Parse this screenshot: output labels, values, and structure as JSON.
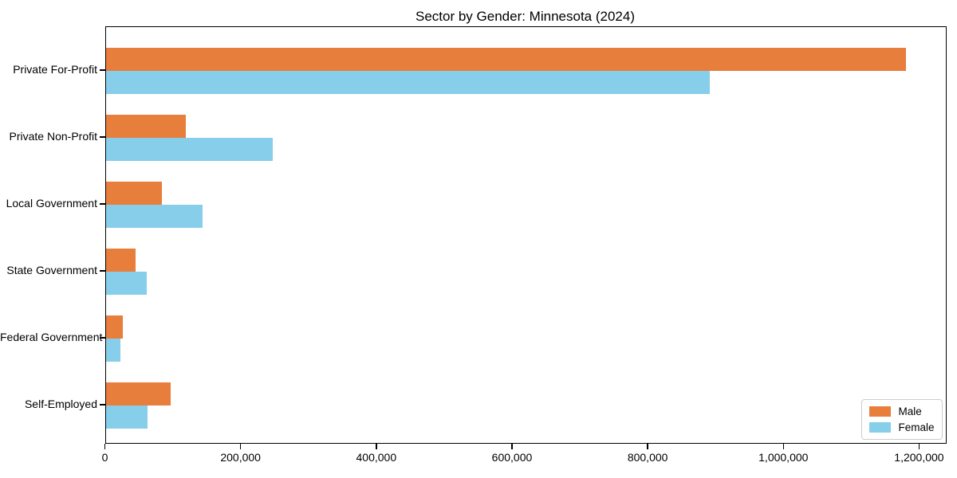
{
  "chart_data": {
    "type": "bar",
    "orientation": "horizontal",
    "title": "Sector by Gender: Minnesota (2024)",
    "categories": [
      "Private For-Profit",
      "Private Non-Profit",
      "Local Government",
      "State Government",
      "Federal Government",
      "Self-Employed"
    ],
    "series": [
      {
        "name": "Male",
        "color": "#E87E3C",
        "values": [
          1180000,
          118000,
          83000,
          44000,
          25000,
          96000
        ]
      },
      {
        "name": "Female",
        "color": "#87CEEB",
        "values": [
          890000,
          246000,
          143000,
          61000,
          22000,
          62000
        ]
      }
    ],
    "xlabel": "",
    "ylabel": "",
    "xlim": [
      0,
      1240000
    ],
    "x_ticks": [
      0,
      200000,
      400000,
      600000,
      800000,
      1000000,
      1200000
    ],
    "x_tick_labels": [
      "0",
      "200,000",
      "400,000",
      "600,000",
      "800,000",
      "1,000,000",
      "1,200,000"
    ],
    "legend_position": "lower right",
    "grid": false,
    "axis_color": "#000000",
    "background_color": "#ffffff"
  }
}
